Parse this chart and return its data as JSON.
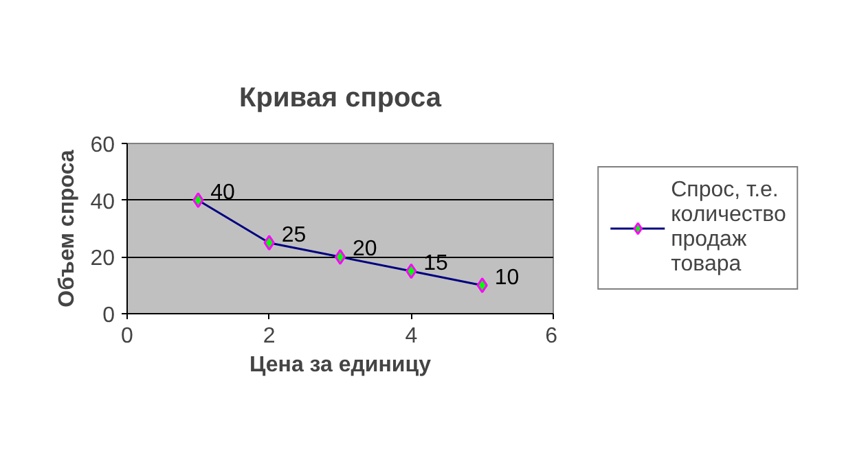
{
  "chart_data": {
    "type": "line",
    "title": "Кривая спроса",
    "xlabel": "Цена за единицу",
    "ylabel": "Объем спроса",
    "x": [
      1,
      2,
      3,
      4,
      5
    ],
    "series": [
      {
        "name": "Спрос, т.е. количество продаж товара",
        "color": "#000080",
        "values": [
          40,
          25,
          20,
          15,
          10
        ]
      }
    ],
    "xlim": [
      0,
      6
    ],
    "ylim": [
      0,
      60
    ],
    "xticks": [
      0,
      2,
      4,
      6
    ],
    "yticks": [
      0,
      20,
      40,
      60
    ],
    "grid": "y",
    "legend": "right",
    "marker": "diamond",
    "line_style": "solid",
    "data_labels": true
  }
}
